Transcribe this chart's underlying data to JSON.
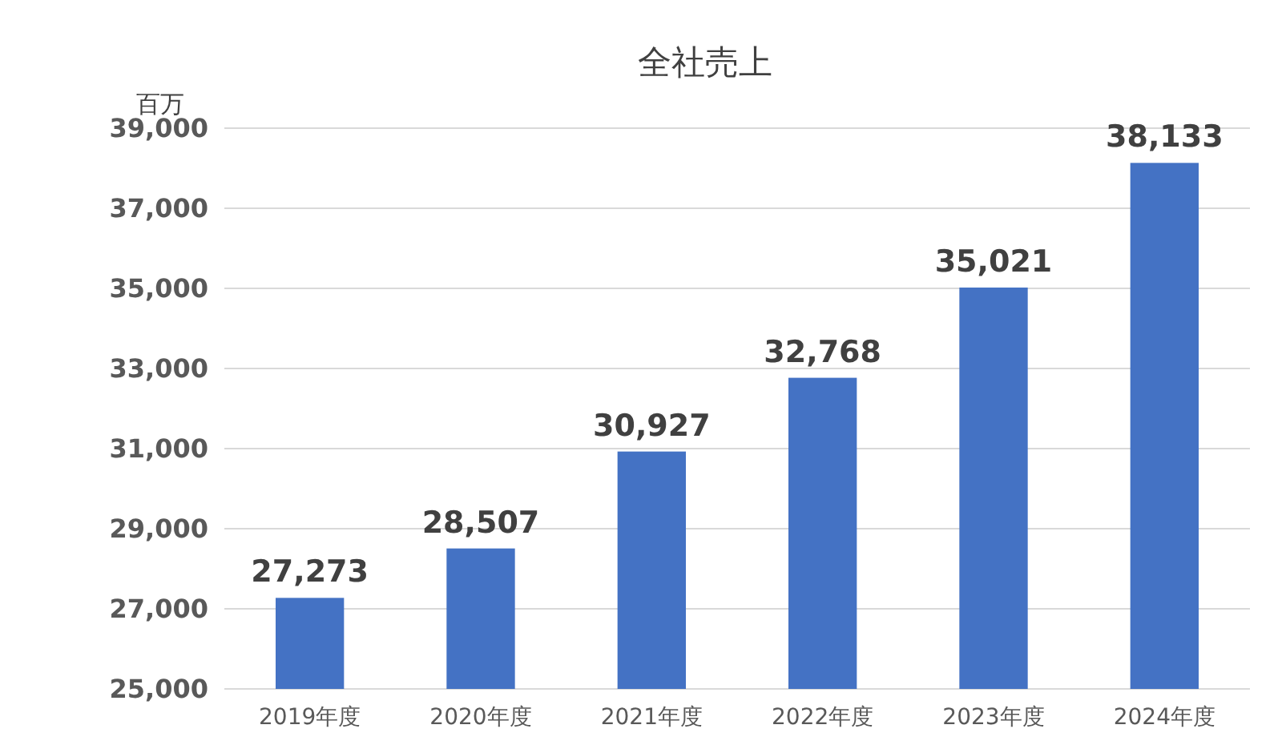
{
  "chart_data": {
    "type": "bar",
    "title": "全社売上",
    "ylabel": "百万",
    "categories": [
      "2019年度",
      "2020年度",
      "2021年度",
      "2022年度",
      "2023年度",
      "2024年度"
    ],
    "values": [
      27273,
      28507,
      30927,
      32768,
      35021,
      38133
    ],
    "value_labels": [
      "27,273",
      "28,507",
      "30,927",
      "32,768",
      "35,021",
      "38,133"
    ],
    "color": "#4472c4",
    "grid": "y",
    "ylim": [
      25000,
      39000
    ],
    "yticks": [
      {
        "value": 25000,
        "label": "25,000"
      },
      {
        "value": 27000,
        "label": "27,000"
      },
      {
        "value": 29000,
        "label": "29,000"
      },
      {
        "value": 31000,
        "label": "31,000"
      },
      {
        "value": 33000,
        "label": "33,000"
      },
      {
        "value": 35000,
        "label": "35,000"
      },
      {
        "value": 37000,
        "label": "37,000"
      },
      {
        "value": 39000,
        "label": "39,000"
      }
    ]
  }
}
